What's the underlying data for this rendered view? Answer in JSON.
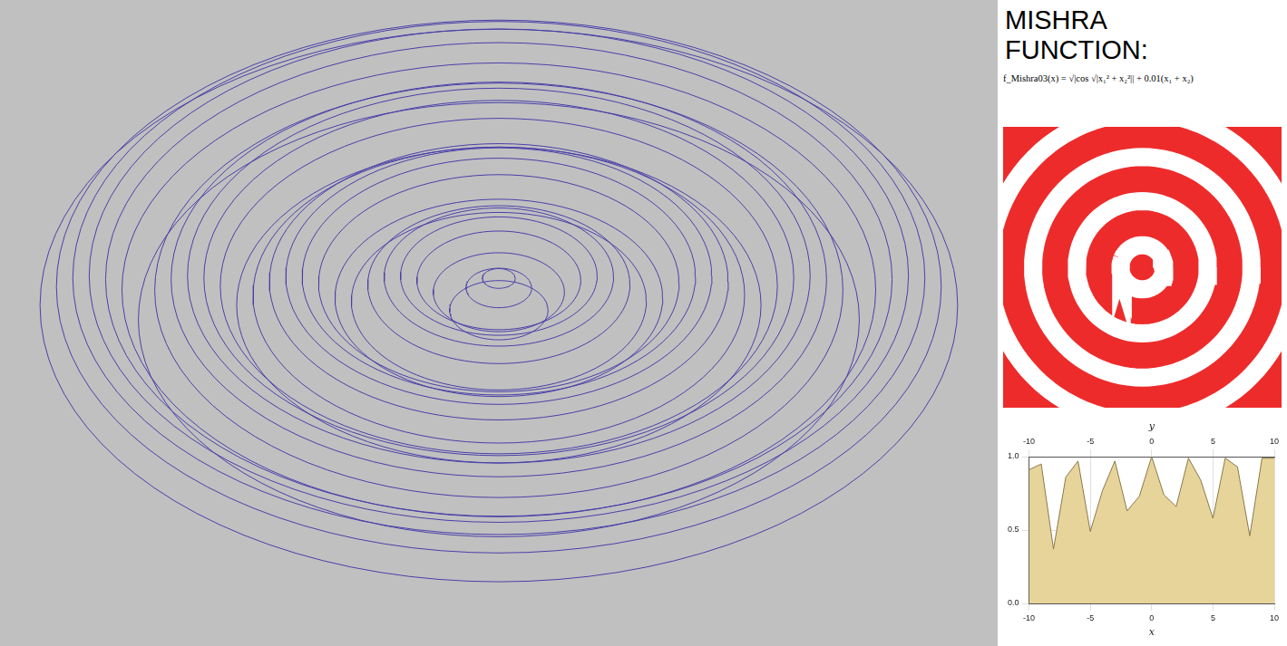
{
  "title": "MISHRA FUNCTION:",
  "formula": "f_Mishra03(x) = √|cos √|x₁² + x₂²|| + 0.01(x₁ + x₂)",
  "chart_data": [
    {
      "type": "wireframe",
      "color": "#4a3fa8",
      "grid": false,
      "tick_labels": false,
      "xlim": [
        -15,
        15
      ],
      "ylim": [
        -8,
        8
      ],
      "rings": {
        "radius": [
          0.5,
          1.0,
          1.5,
          2.0,
          2.5,
          3.0,
          3.5,
          4.0,
          4.5,
          5.0,
          5.5,
          6.0,
          6.5,
          7.0,
          7.5,
          8.0,
          8.5,
          9.0,
          9.5,
          10.0,
          10.5,
          11.0,
          11.5,
          12.0,
          12.5,
          13.0,
          13.5,
          14.0
        ],
        "z": [
          0.94,
          0.74,
          0.27,
          0.65,
          0.9,
          0.99,
          0.97,
          0.81,
          0.46,
          0.53,
          0.84,
          0.98,
          0.99,
          0.87,
          0.59,
          0.38,
          0.78,
          0.95,
          1.0,
          0.92,
          0.69,
          0.07,
          0.7,
          0.92,
          1.0,
          0.95,
          0.77,
          0.37
        ]
      }
    },
    {
      "type": "contour",
      "color": "#ee2b2b",
      "grid": false,
      "tick_labels": false,
      "xlim": [
        -10,
        10
      ],
      "ylim": [
        -10,
        10
      ],
      "rings": {
        "radius": [
          1.57,
          4.71,
          7.85,
          11.0
        ]
      }
    },
    {
      "type": "surface",
      "color": "#e6d49a",
      "grid": true,
      "x_axis": {
        "label": "x",
        "lim": [
          -10,
          10
        ],
        "ticks": [
          -10,
          -5,
          0,
          5,
          10
        ]
      },
      "y_axis": {
        "label": "y",
        "lim": [
          -10,
          10
        ],
        "ticks": [
          -10,
          -5,
          0,
          5,
          10
        ]
      },
      "z_axis": {
        "lim": [
          0,
          1
        ],
        "ticks": [
          {
            "value": 0,
            "label": "0.0"
          },
          {
            "value": 0.5,
            "label": "0.5"
          },
          {
            "value": 1,
            "label": "1.0"
          }
        ]
      },
      "x": [
        -10,
        -9,
        -8,
        -7,
        -6,
        -5,
        -4,
        -3,
        -2,
        -1,
        0,
        1,
        2,
        3,
        4,
        5,
        6,
        7,
        8,
        9,
        10
      ],
      "values": [
        0.91,
        0.95,
        0.37,
        0.86,
        0.97,
        0.49,
        0.77,
        0.97,
        0.63,
        0.73,
        1.0,
        0.74,
        0.66,
        0.99,
        0.84,
        0.58,
        0.99,
        0.93,
        0.46,
        0.99,
        0.99
      ]
    }
  ]
}
